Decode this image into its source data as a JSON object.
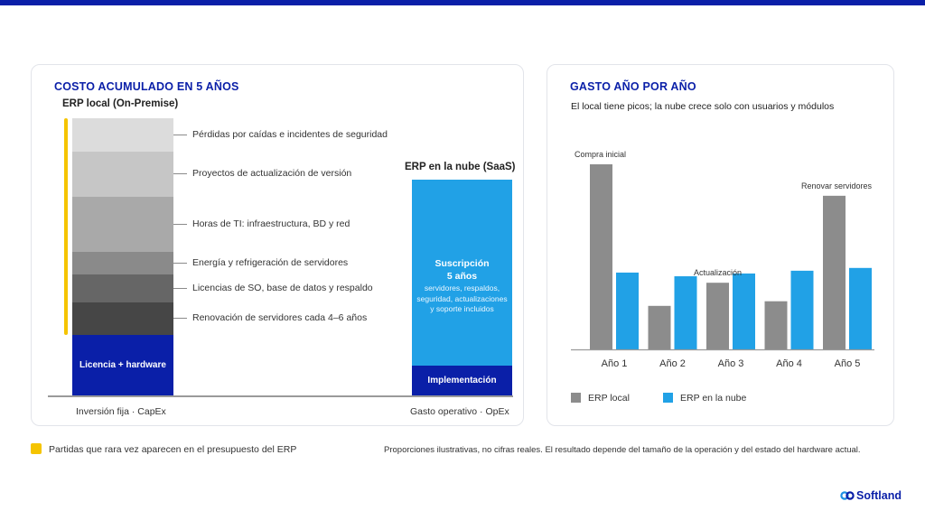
{
  "colors": {
    "brand": "#0a1fa8",
    "highlight": "#f5c400",
    "local_bar": "#8c8c8c",
    "cloud_bar": "#21a1e6",
    "cloud_dark": "#0a1fa8"
  },
  "left_panel": {
    "title": "COSTO ACUMULADO EN 5 AÑOS",
    "local_header": "ERP local (On-Premise)",
    "cloud_header": "ERP en la nube (SaaS)",
    "local_segments": [
      {
        "label": "Pérdidas por caídas e incidentes de seguridad",
        "color": "#dcdcdc"
      },
      {
        "label": "Proyectos de actualización de versión",
        "color": "#c6c6c6"
      },
      {
        "label": "Horas de TI: infraestructura, BD y red",
        "color": "#a9a9a9"
      },
      {
        "label": "Energía y refrigeración de servidores",
        "color": "#8a8a8a"
      },
      {
        "label": "Licencias de SO, base de datos y respaldo",
        "color": "#666666"
      },
      {
        "label": "Renovación de servidores cada 4–6 años",
        "color": "#464646"
      },
      {
        "label": "Licencia + hardware",
        "color": "#0a1fa8"
      }
    ],
    "cloud_segments": {
      "subscription_title": "Suscripción",
      "subscription_years": "5 años",
      "subscription_detail_1": "servidores, respaldos,",
      "subscription_detail_2": "seguridad, actualizaciones",
      "subscription_detail_3": "y soporte incluidos",
      "implementation": "Implementación"
    },
    "local_axis_label": "Inversión fija · CapEx",
    "cloud_axis_label": "Gasto operativo · OpEx"
  },
  "right_panel": {
    "title": "GASTO AÑO POR AÑO",
    "subtitle": "El local tiene picos; la nube crece solo con usuarios y módulos"
  },
  "chart_data": {
    "type": "bar",
    "categories": [
      "Año 1",
      "Año 2",
      "Año 3",
      "Año 4",
      "Año 5"
    ],
    "series": [
      {
        "name": "ERP local",
        "values": [
          100,
          23.5,
          36,
          26,
          83
        ]
      },
      {
        "name": "ERP en la nube",
        "values": [
          41.5,
          39.5,
          41,
          42.5,
          44
        ]
      }
    ],
    "annotations": [
      {
        "category": "Año 1",
        "text": "Compra inicial"
      },
      {
        "category": "Año 3",
        "text": "Actualización"
      },
      {
        "category": "Año 5",
        "text": "Renovar servidores"
      }
    ],
    "legend": "bottom-left",
    "grid": false,
    "ylim": [
      0,
      100
    ]
  },
  "footer": {
    "legend_note": "Partidas que rara vez aparecen en el presupuesto del ERP",
    "disclaimer": "Proporciones ilustrativas, no cifras reales. El resultado depende del tamaño de la operación y del estado del hardware actual.",
    "brand": "Softland"
  }
}
